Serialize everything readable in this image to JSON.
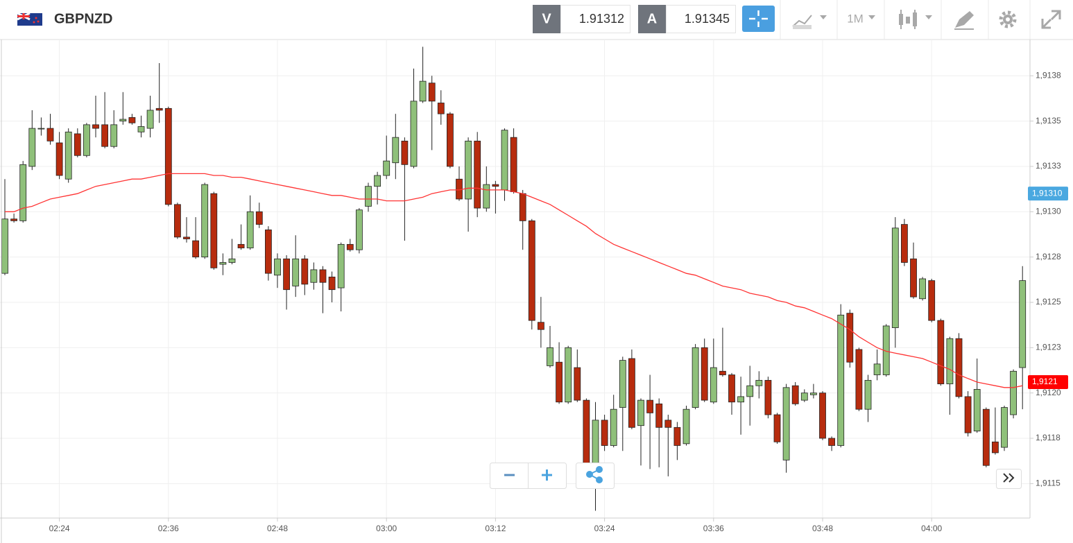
{
  "header": {
    "symbol": "GBPNZD",
    "bid_label": "V",
    "bid": 1.91312,
    "ask_label": "A",
    "ask": 1.91345,
    "timeframe": "1M"
  },
  "chart_data": {
    "type": "candlestick",
    "x": [
      "02:18",
      "02:19",
      "02:20",
      "02:21",
      "02:22",
      "02:23",
      "02:24",
      "02:25",
      "02:26",
      "02:27",
      "02:28",
      "02:29",
      "02:30",
      "02:31",
      "02:32",
      "02:33",
      "02:34",
      "02:35",
      "02:36",
      "02:37",
      "02:38",
      "02:39",
      "02:40",
      "02:41",
      "02:42",
      "02:43",
      "02:44",
      "02:45",
      "02:46",
      "02:47",
      "02:48",
      "02:49",
      "02:50",
      "02:51",
      "02:52",
      "02:53",
      "02:54",
      "02:55",
      "02:56",
      "02:57",
      "02:58",
      "02:59",
      "03:00",
      "03:01",
      "03:02",
      "03:03",
      "03:04",
      "03:05",
      "03:06",
      "03:07",
      "03:08",
      "03:09",
      "03:10",
      "03:11",
      "03:12",
      "03:13",
      "03:14",
      "03:15",
      "03:16",
      "03:17",
      "03:18",
      "03:19",
      "03:20",
      "03:21",
      "03:22",
      "03:23",
      "03:24",
      "03:25",
      "03:26",
      "03:27",
      "03:28",
      "03:29",
      "03:30",
      "03:31",
      "03:32",
      "03:33",
      "03:34",
      "03:35",
      "03:36",
      "03:37",
      "03:38",
      "03:39",
      "03:40",
      "03:41",
      "03:42",
      "03:43",
      "03:44",
      "03:45",
      "03:46",
      "03:47",
      "03:48",
      "03:49",
      "03:50",
      "03:51",
      "03:52",
      "03:53",
      "03:54",
      "03:55",
      "03:56",
      "03:57",
      "03:58",
      "03:59",
      "04:00",
      "04:01",
      "04:02",
      "04:03",
      "04:04",
      "04:05",
      "04:06",
      "04:07",
      "04:08",
      "04:09",
      "04:10"
    ],
    "open": [
      1.91266,
      1.91296,
      1.91295,
      1.91325,
      1.91346,
      1.91346,
      1.91338,
      1.91318,
      1.91343,
      1.91331,
      1.91348,
      1.91348,
      1.91336,
      1.9135,
      1.91352,
      1.91344,
      1.91346,
      1.91357,
      1.91357,
      1.91304,
      1.91286,
      1.91284,
      1.91275,
      1.9131,
      1.91271,
      1.91272,
      1.91282,
      1.9128,
      1.913,
      1.9129,
      1.91265,
      1.91274,
      1.91259,
      1.91274,
      1.91261,
      1.91268,
      1.91264,
      1.91258,
      1.91282,
      1.91279,
      1.91303,
      1.91314,
      1.9132,
      1.91327,
      1.91339,
      1.91325,
      1.91361,
      1.91371,
      1.9136,
      1.91354,
      1.91318,
      1.91307,
      1.91339,
      1.91302,
      1.91315,
      1.91312,
      1.91341,
      1.9131,
      1.91295,
      1.91239,
      1.91215,
      1.91217,
      1.91195,
      1.91214,
      1.91196,
      1.91158,
      1.91185,
      1.91171,
      1.91192,
      1.91219,
      1.91182,
      1.91196,
      1.91194,
      1.91185,
      1.91181,
      1.91172,
      1.91192,
      1.91225,
      1.91195,
      1.91212,
      1.9121,
      1.91195,
      1.91198,
      1.91204,
      1.91207,
      1.91188,
      1.91163,
      1.91204,
      1.91196,
      1.91199,
      1.912,
      1.91175,
      1.91171,
      1.91244,
      1.91224,
      1.91191,
      1.9121,
      1.9121,
      1.91236,
      1.91293,
      1.91274,
      1.91252,
      1.91262,
      1.9124,
      1.91205,
      1.9123,
      1.91198,
      1.91179,
      1.91191,
      1.91173,
      1.9117,
      1.91188,
      1.91214
    ],
    "high": [
      1.91318,
      1.91299,
      1.91328,
      1.91356,
      1.91352,
      1.91354,
      1.91344,
      1.91346,
      1.91346,
      1.91349,
      1.91364,
      1.91366,
      1.91356,
      1.91366,
      1.91354,
      1.91353,
      1.91364,
      1.91382,
      1.91358,
      1.91305,
      1.91297,
      1.91297,
      1.91316,
      1.91311,
      1.91277,
      1.91285,
      1.91293,
      1.91309,
      1.91305,
      1.91292,
      1.91277,
      1.91276,
      1.91287,
      1.91276,
      1.91272,
      1.9127,
      1.91267,
      1.91283,
      1.91285,
      1.91302,
      1.91316,
      1.91322,
      1.91342,
      1.91354,
      1.91341,
      1.91379,
      1.91391,
      1.91375,
      1.91367,
      1.91355,
      1.91325,
      1.91341,
      1.91344,
      1.91325,
      1.91317,
      1.91346,
      1.91346,
      1.91312,
      1.91296,
      1.91253,
      1.91237,
      1.91228,
      1.91226,
      1.91224,
      1.91197,
      1.91195,
      1.91188,
      1.91199,
      1.9122,
      1.91224,
      1.91197,
      1.9121,
      1.91197,
      1.91188,
      1.91184,
      1.91193,
      1.91227,
      1.9123,
      1.9123,
      1.91236,
      1.91211,
      1.91209,
      1.91215,
      1.91212,
      1.91209,
      1.91189,
      1.91205,
      1.91206,
      1.91202,
      1.91205,
      1.91201,
      1.91176,
      1.91249,
      1.91246,
      1.91225,
      1.9121,
      1.91224,
      1.91238,
      1.91297,
      1.91296,
      1.91283,
      1.91264,
      1.91263,
      1.91241,
      1.91231,
      1.91233,
      1.91201,
      1.91219,
      1.91192,
      1.91192,
      1.91193,
      1.91213,
      1.9127
    ],
    "low": [
      1.91265,
      1.91294,
      1.91294,
      1.91323,
      1.91342,
      1.91337,
      1.91318,
      1.91316,
      1.9133,
      1.9133,
      1.91341,
      1.91335,
      1.91335,
      1.91348,
      1.91348,
      1.91341,
      1.91341,
      1.91349,
      1.91303,
      1.91285,
      1.91283,
      1.91274,
      1.91274,
      1.91268,
      1.91265,
      1.91271,
      1.91279,
      1.91279,
      1.91291,
      1.91262,
      1.91258,
      1.91246,
      1.91253,
      1.91254,
      1.91257,
      1.91244,
      1.9125,
      1.91245,
      1.91278,
      1.91277,
      1.913,
      1.91304,
      1.91318,
      1.91318,
      1.91284,
      1.91324,
      1.9136,
      1.91334,
      1.91348,
      1.91324,
      1.91306,
      1.91289,
      1.91297,
      1.913,
      1.91299,
      1.91306,
      1.9131,
      1.91279,
      1.91235,
      1.91225,
      1.91214,
      1.91194,
      1.91194,
      1.91195,
      1.91155,
      1.91135,
      1.91168,
      1.9117,
      1.91168,
      1.9118,
      1.9116,
      1.91158,
      1.91159,
      1.91154,
      1.91163,
      1.91171,
      1.91191,
      1.91195,
      1.91194,
      1.91209,
      1.91188,
      1.91177,
      1.91182,
      1.91197,
      1.91186,
      1.91172,
      1.91156,
      1.91193,
      1.91195,
      1.91197,
      1.91174,
      1.91168,
      1.9117,
      1.91214,
      1.9119,
      1.91184,
      1.91207,
      1.91209,
      1.91225,
      1.9127,
      1.91252,
      1.91251,
      1.91239,
      1.91204,
      1.91188,
      1.91197,
      1.91176,
      1.91178,
      1.91159,
      1.91166,
      1.91168,
      1.91186,
      1.91191
    ],
    "close": [
      1.91296,
      1.91295,
      1.91326,
      1.91346,
      1.91346,
      1.91339,
      1.9132,
      1.91344,
      1.91331,
      1.91348,
      1.91346,
      1.91336,
      1.91348,
      1.91351,
      1.91349,
      1.91347,
      1.91356,
      1.91356,
      1.91304,
      1.91286,
      1.91285,
      1.91275,
      1.91315,
      1.91269,
      1.91272,
      1.91274,
      1.9128,
      1.913,
      1.91293,
      1.91266,
      1.91274,
      1.91257,
      1.91274,
      1.9126,
      1.91268,
      1.91261,
      1.91257,
      1.91282,
      1.91279,
      1.91301,
      1.91314,
      1.9132,
      1.91328,
      1.91341,
      1.91326,
      1.91361,
      1.91372,
      1.91361,
      1.91354,
      1.91325,
      1.91307,
      1.91339,
      1.91302,
      1.91315,
      1.91314,
      1.91345,
      1.91311,
      1.91295,
      1.9124,
      1.91235,
      1.91225,
      1.91195,
      1.91225,
      1.91196,
      1.91158,
      1.91185,
      1.91171,
      1.91191,
      1.91218,
      1.91181,
      1.91196,
      1.91189,
      1.91181,
      1.91181,
      1.91171,
      1.91191,
      1.91225,
      1.91196,
      1.91214,
      1.9121,
      1.91195,
      1.91198,
      1.91204,
      1.91207,
      1.91188,
      1.91173,
      1.91203,
      1.91194,
      1.912,
      1.912,
      1.91175,
      1.91171,
      1.91243,
      1.91217,
      1.91191,
      1.91207,
      1.91216,
      1.91237,
      1.91291,
      1.91272,
      1.91253,
      1.91263,
      1.9124,
      1.91205,
      1.9123,
      1.91198,
      1.91178,
      1.91202,
      1.9116,
      1.91167,
      1.91192,
      1.91212,
      1.91262
    ],
    "up_color": "#8fc07a",
    "down_color": "#b72c0e",
    "lines": [
      {
        "color": "#ff3333",
        "values": [
          1.913,
          1.913,
          1.91302,
          1.91303,
          1.91305,
          1.91307,
          1.91308,
          1.91309,
          1.9131,
          1.91312,
          1.91314,
          1.91315,
          1.91316,
          1.91317,
          1.91318,
          1.91318,
          1.91319,
          1.9132,
          1.91321,
          1.91321,
          1.91321,
          1.91321,
          1.91321,
          1.9132,
          1.9132,
          1.91319,
          1.91319,
          1.91318,
          1.91317,
          1.91316,
          1.91315,
          1.91314,
          1.91313,
          1.91312,
          1.91311,
          1.9131,
          1.91309,
          1.91309,
          1.91308,
          1.91307,
          1.91307,
          1.91307,
          1.91306,
          1.91306,
          1.91306,
          1.91307,
          1.91308,
          1.9131,
          1.91311,
          1.91312,
          1.91312,
          1.91313,
          1.91313,
          1.91312,
          1.91312,
          1.91312,
          1.91311,
          1.9131,
          1.91308,
          1.91306,
          1.91304,
          1.91301,
          1.91298,
          1.91295,
          1.91292,
          1.91288,
          1.91285,
          1.91282,
          1.9128,
          1.91278,
          1.91276,
          1.91274,
          1.91272,
          1.9127,
          1.91268,
          1.91266,
          1.91265,
          1.91263,
          1.91261,
          1.91259,
          1.91258,
          1.91257,
          1.91255,
          1.91254,
          1.91253,
          1.91251,
          1.9125,
          1.91248,
          1.91247,
          1.91245,
          1.91243,
          1.91241,
          1.91238,
          1.91235,
          1.91231,
          1.91228,
          1.91225,
          1.91223,
          1.91222,
          1.91221,
          1.9122,
          1.91219,
          1.91217,
          1.91215,
          1.91213,
          1.9121,
          1.91208,
          1.91206,
          1.91205,
          1.91204,
          1.91203,
          1.91203,
          1.91204
        ]
      }
    ],
    "price_labels": [
      {
        "value": 1.9131,
        "label": "1,91310",
        "color": "#4aa8e0"
      },
      {
        "value": 1.91206,
        "label": "1,9121",
        "color": "#ff0000"
      }
    ],
    "ylim": [
      1.91131,
      1.91395
    ],
    "yticks": [
      {
        "value": 1.9115,
        "label": "1,9115"
      },
      {
        "value": 1.91175,
        "label": "1,9118"
      },
      {
        "value": 1.912,
        "label": "1,9120"
      },
      {
        "value": 1.91225,
        "label": "1,9123"
      },
      {
        "value": 1.9125,
        "label": "1,9125"
      },
      {
        "value": 1.91275,
        "label": "1,9128"
      },
      {
        "value": 1.913,
        "label": "1,9130"
      },
      {
        "value": 1.91325,
        "label": "1,9133"
      },
      {
        "value": 1.9135,
        "label": "1,9135"
      },
      {
        "value": 1.91375,
        "label": "1,9138"
      }
    ],
    "xticks": [
      "02:24",
      "02:36",
      "02:48",
      "03:00",
      "03:12",
      "03:24",
      "03:36",
      "03:48",
      "04:00"
    ],
    "grid": true
  }
}
